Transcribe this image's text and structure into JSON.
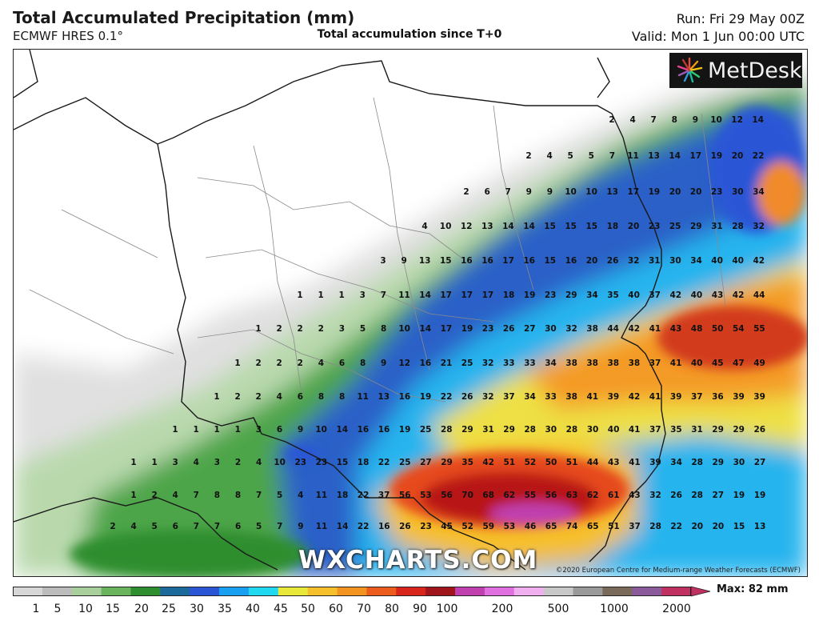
{
  "header": {
    "title": "Total Accumulated Precipitation (mm)",
    "model": "ECMWF HRES 0.1°",
    "subtitle": "Total accumulation since T+0",
    "run": "Run: Fri 29 May 00Z",
    "valid": "Valid: Mon 1 Jun 00:00 UTC"
  },
  "logo": {
    "text": "MetDesk"
  },
  "watermark": "WXCHARTS.COM",
  "credit": "©2020 European Centre for Medium-range Weather Forecasts (ECMWF)",
  "colorbar": {
    "ticks": [
      "1",
      "5",
      "10",
      "15",
      "20",
      "25",
      "30",
      "35",
      "40",
      "45",
      "50",
      "60",
      "70",
      "80",
      "90",
      "100",
      "200",
      "500",
      "1000",
      "2000"
    ],
    "colors": [
      "#d7d7d7",
      "#bcbcbc",
      "#a8cf9c",
      "#6ab45e",
      "#2f8e2f",
      "#1c6a9c",
      "#2a56d6",
      "#1aa0f0",
      "#20d8f0",
      "#e8e83a",
      "#f6bf2c",
      "#f39420",
      "#ec5c1c",
      "#d8261c",
      "#a0141c",
      "#c040b0",
      "#e070e0",
      "#f0b0f0",
      "#c8c8c8",
      "#9a9a9a",
      "#7a6a5a",
      "#8a5a9a",
      "#c03060"
    ],
    "max_label": "Max: 82 mm"
  },
  "grid": {
    "rows": [
      {
        "y": 150,
        "x0": 764,
        "values": [
          "2",
          "4",
          "7",
          "8",
          "9",
          "10",
          "12",
          "14"
        ]
      },
      {
        "y": 195,
        "x0": 660,
        "values": [
          "2",
          "4",
          "5",
          "5",
          "7",
          "11",
          "13",
          "14",
          "17",
          "19",
          "20",
          "22"
        ]
      },
      {
        "y": 240,
        "x0": 582,
        "values": [
          "2",
          "6",
          "7",
          "9",
          "9",
          "10",
          "10",
          "13",
          "17",
          "19",
          "20",
          "20",
          "23",
          "30",
          "34"
        ]
      },
      {
        "y": 283,
        "x0": 530,
        "values": [
          "4",
          "10",
          "12",
          "13",
          "14",
          "14",
          "15",
          "15",
          "15",
          "18",
          "20",
          "23",
          "25",
          "29",
          "31",
          "28",
          "32"
        ]
      },
      {
        "y": 326,
        "x0": 478,
        "values": [
          "3",
          "9",
          "13",
          "15",
          "16",
          "16",
          "17",
          "16",
          "15",
          "16",
          "20",
          "26",
          "32",
          "31",
          "30",
          "34",
          "40",
          "40",
          "42"
        ]
      },
      {
        "y": 369,
        "x0": 374,
        "values": [
          "1",
          "1",
          "1",
          "3",
          "7",
          "11",
          "14",
          "17",
          "17",
          "17",
          "18",
          "19",
          "23",
          "29",
          "34",
          "35",
          "40",
          "37",
          "42",
          "40",
          "43",
          "42",
          "44"
        ]
      },
      {
        "y": 411,
        "x0": 322,
        "values": [
          "1",
          "2",
          "2",
          "2",
          "3",
          "5",
          "8",
          "10",
          "14",
          "17",
          "19",
          "23",
          "26",
          "27",
          "30",
          "32",
          "38",
          "44",
          "42",
          "41",
          "43",
          "48",
          "50",
          "54",
          "55"
        ]
      },
      {
        "y": 454,
        "x0": 296,
        "values": [
          "1",
          "2",
          "2",
          "2",
          "4",
          "6",
          "8",
          "9",
          "12",
          "16",
          "21",
          "25",
          "32",
          "33",
          "33",
          "34",
          "38",
          "38",
          "38",
          "38",
          "37",
          "41",
          "40",
          "45",
          "47",
          "49"
        ]
      },
      {
        "y": 496,
        "x0": 270,
        "values": [
          "1",
          "2",
          "2",
          "4",
          "6",
          "8",
          "8",
          "11",
          "13",
          "16",
          "19",
          "22",
          "26",
          "32",
          "37",
          "34",
          "33",
          "38",
          "41",
          "39",
          "42",
          "41",
          "39",
          "37",
          "36",
          "39",
          "39"
        ]
      },
      {
        "y": 537,
        "x0": 218,
        "values": [
          "1",
          "1",
          "1",
          "1",
          "3",
          "6",
          "9",
          "10",
          "14",
          "16",
          "16",
          "19",
          "25",
          "28",
          "29",
          "31",
          "29",
          "28",
          "30",
          "28",
          "30",
          "40",
          "41",
          "37",
          "35",
          "31",
          "29",
          "29",
          "26"
        ]
      },
      {
        "y": 578,
        "x0": 166,
        "values": [
          "1",
          "1",
          "3",
          "4",
          "3",
          "2",
          "4",
          "10",
          "23",
          "23",
          "15",
          "18",
          "22",
          "25",
          "27",
          "29",
          "35",
          "42",
          "51",
          "52",
          "50",
          "51",
          "44",
          "43",
          "41",
          "39",
          "34",
          "28",
          "29",
          "30",
          "27"
        ]
      },
      {
        "y": 619,
        "x0": 166,
        "values": [
          "1",
          "2",
          "4",
          "7",
          "8",
          "8",
          "7",
          "5",
          "4",
          "11",
          "18",
          "22",
          "37",
          "56",
          "53",
          "56",
          "70",
          "68",
          "62",
          "55",
          "56",
          "63",
          "62",
          "61",
          "43",
          "32",
          "26",
          "28",
          "27",
          "19",
          "19"
        ]
      },
      {
        "y": 658,
        "x0": 140,
        "values": [
          "2",
          "4",
          "5",
          "6",
          "7",
          "7",
          "6",
          "5",
          "7",
          "9",
          "11",
          "14",
          "22",
          "16",
          "26",
          "23",
          "45",
          "52",
          "59",
          "53",
          "46",
          "65",
          "74",
          "65",
          "51",
          "37",
          "28",
          "22",
          "20",
          "20",
          "15",
          "13"
        ]
      }
    ]
  }
}
